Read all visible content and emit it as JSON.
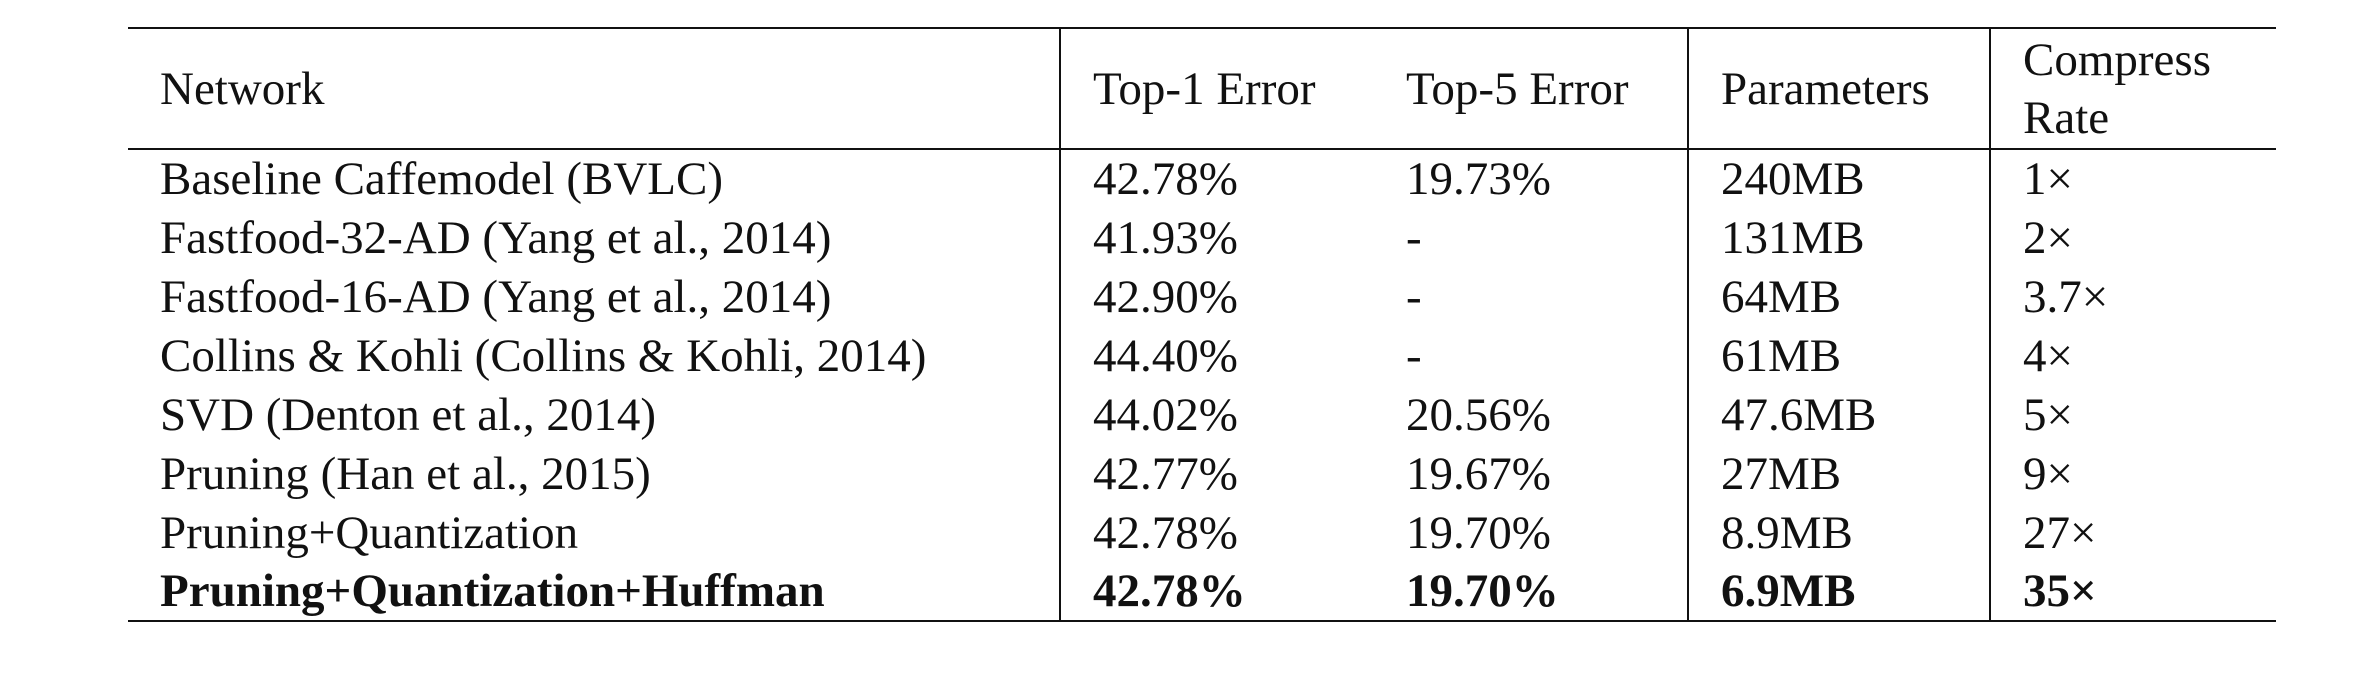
{
  "table": {
    "columns": [
      "Network",
      "Top-1 Error",
      "Top-5 Error",
      "Parameters",
      "Compress Rate"
    ],
    "rows": [
      {
        "network": "Baseline Caffemodel (BVLC)",
        "top1": "42.78%",
        "top5": "19.73%",
        "params": "240MB",
        "rate": "1×"
      },
      {
        "network": "Fastfood-32-AD (Yang et al., 2014)",
        "top1": "41.93%",
        "top5": "-",
        "params": "131MB",
        "rate": "2×"
      },
      {
        "network": "Fastfood-16-AD (Yang et al., 2014)",
        "top1": "42.90%",
        "top5": "-",
        "params": "64MB",
        "rate": "3.7×"
      },
      {
        "network": "Collins & Kohli (Collins & Kohli, 2014)",
        "top1": "44.40%",
        "top5": "-",
        "params": "61MB",
        "rate": "4×"
      },
      {
        "network": "SVD (Denton et al., 2014)",
        "top1": "44.02%",
        "top5": "20.56%",
        "params": "47.6MB",
        "rate": "5×"
      },
      {
        "network": "Pruning (Han et al., 2015)",
        "top1": "42.77%",
        "top5": "19.67%",
        "params": "27MB",
        "rate": "9×"
      },
      {
        "network": "Pruning+Quantization",
        "top1": "42.78%",
        "top5": "19.70%",
        "params": "8.9MB",
        "rate": "27×"
      },
      {
        "network": "Pruning+Quantization+Huffman",
        "top1": "42.78%",
        "top5": "19.70%",
        "params": "6.9MB",
        "rate": "35×"
      }
    ]
  }
}
